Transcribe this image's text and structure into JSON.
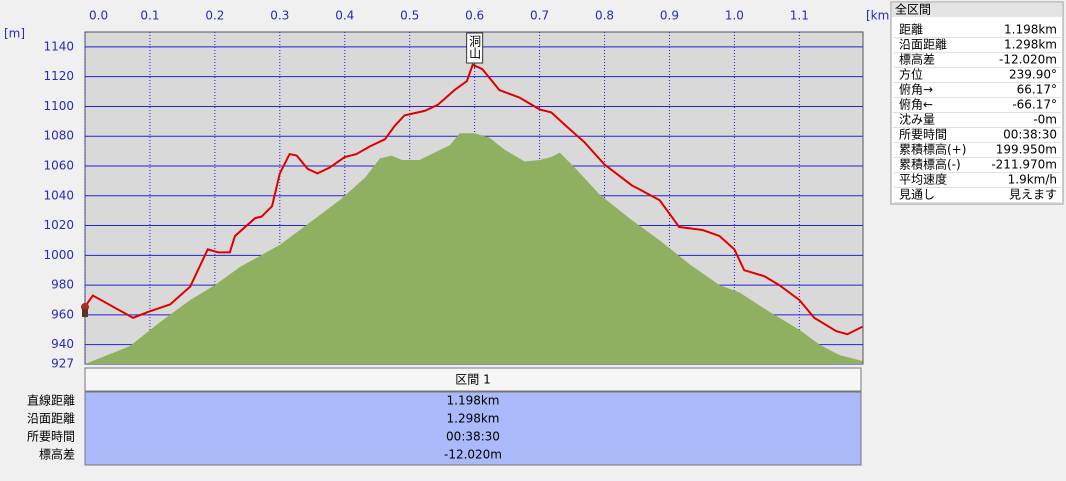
{
  "chart_data": {
    "type": "line",
    "xlabel": "[km]",
    "ylabel": "[m]",
    "xlim": [
      0,
      1.198
    ],
    "ylim": [
      927,
      1150
    ],
    "xticks": [
      {
        "value": 0,
        "label": "0.0"
      },
      0.1,
      0.2,
      0.3,
      0.4,
      0.5,
      0.6,
      0.7,
      0.8,
      0.9,
      {
        "value": 1,
        "label": "1.0"
      },
      1.1
    ],
    "yticks": [
      927,
      940,
      960,
      980,
      1000,
      1020,
      1040,
      1060,
      1080,
      1100,
      1120,
      1140
    ],
    "grid": true,
    "annotations": [
      {
        "text": "洞山",
        "x": 0.6
      }
    ],
    "series": [
      {
        "style": "area",
        "color": "#8fb060",
        "x": [
          0,
          0.069,
          0.115,
          0.162,
          0.2,
          0.238,
          0.3,
          0.346,
          0.392,
          0.431,
          0.454,
          0.472,
          0.488,
          0.515,
          0.543,
          0.562,
          0.577,
          0.6,
          0.623,
          0.646,
          0.677,
          0.7,
          0.718,
          0.731,
          0.754,
          0.792,
          0.838,
          0.885,
          0.931,
          0.977,
          1.008,
          1.054,
          1.1,
          1.131,
          1.162,
          1.197
        ],
        "values": [
          927,
          939,
          955,
          970,
          980,
          992,
          1007,
          1022,
          1037,
          1052,
          1065,
          1067,
          1064,
          1064,
          1070,
          1074,
          1082,
          1082,
          1079,
          1071,
          1063,
          1064,
          1066,
          1069,
          1059,
          1041,
          1025,
          1010,
          994,
          980,
          975,
          962,
          950,
          940,
          933,
          929
        ]
      },
      {
        "style": "line",
        "color": "#e00000",
        "x": [
          0,
          0.012,
          0.074,
          0.097,
          0.131,
          0.162,
          0.189,
          0.205,
          0.223,
          0.231,
          0.262,
          0.272,
          0.288,
          0.3,
          0.315,
          0.326,
          0.343,
          0.358,
          0.377,
          0.4,
          0.418,
          0.438,
          0.462,
          0.477,
          0.492,
          0.523,
          0.543,
          0.569,
          0.588,
          0.597,
          0.612,
          0.638,
          0.669,
          0.7,
          0.718,
          0.743,
          0.769,
          0.8,
          0.842,
          0.885,
          0.915,
          0.951,
          0.977,
          1.0,
          1.015,
          1.046,
          1.069,
          1.1,
          1.123,
          1.157,
          1.174,
          1.197
        ],
        "values": [
          965.5,
          973,
          958,
          962,
          967,
          979,
          1004,
          1002,
          1002,
          1013,
          1025,
          1026,
          1033,
          1055,
          1068,
          1067,
          1058,
          1055,
          1059,
          1066,
          1068,
          1073,
          1078,
          1087,
          1094,
          1097,
          1101,
          1111,
          1117,
          1128,
          1125,
          1111,
          1106,
          1098,
          1096,
          1086,
          1076,
          1061,
          1047,
          1037,
          1019,
          1017,
          1013,
          1004,
          990,
          986,
          980,
          970,
          958,
          949,
          947,
          952
        ]
      }
    ]
  },
  "section_table": {
    "header": "区間 1",
    "rows": [
      [
        "直線距離",
        "1.198km"
      ],
      [
        "沿面距離",
        "1.298km"
      ],
      [
        "所要時間",
        "00:38:30"
      ],
      [
        "標高差",
        "-12.020m"
      ]
    ]
  },
  "summary_panel": {
    "title": "全区間",
    "rows": [
      [
        "距離",
        "1.198km"
      ],
      [
        "沿面距離",
        "1.298km"
      ],
      [
        "標高差",
        "-12.020m"
      ],
      [
        "方位",
        "239.90°"
      ],
      [
        "俯角→",
        "66.17°"
      ],
      [
        "俯角←",
        "-66.17°"
      ],
      [
        "沈み量",
        "-0m"
      ],
      [
        "所要時間",
        "00:38:30"
      ],
      [
        "累積標高(+)",
        "199.950m"
      ],
      [
        "累積標高(-)",
        "-211.970m"
      ],
      [
        "平均速度",
        "1.9km/h"
      ],
      [
        "見通し",
        "見えます"
      ]
    ]
  }
}
